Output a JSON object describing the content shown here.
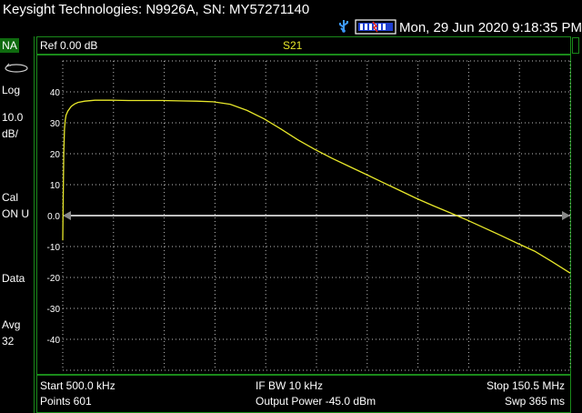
{
  "header": {
    "title": "Keysight Technologies: N9926A, SN: MY57271140",
    "datetime": "Mon, 29 Jun 2020 9:18:35 PM",
    "usb_icon": "usb-icon",
    "battery_icon": "battery-icon"
  },
  "left_panel": {
    "mode_badge": "NA",
    "format": "Log",
    "scale_value": "10.0",
    "scale_unit": "dB/",
    "cal_label": "Cal",
    "cal_value": "ON U",
    "data_label": "Data",
    "avg_label": "Avg",
    "avg_value": "32"
  },
  "trace_header": {
    "reference": "Ref 0.00 dB",
    "measurement": "S21"
  },
  "footer": {
    "start": "Start 500.0 kHz",
    "ifbw": "IF BW 10 kHz",
    "stop": "Stop 150.5 MHz",
    "points": "Points 601",
    "output_power": "Output Power -45.0 dBm",
    "sweep": "Swp 365 ms"
  },
  "colors": {
    "background": "#000000",
    "grid": "#ffffff",
    "frame": "#1a8a1a",
    "trace": "#e8e82a",
    "reference_line": "#ffffff",
    "badge": "#0f6b0f"
  },
  "chart_data": {
    "type": "line",
    "title": "S21",
    "xlabel": "",
    "ylabel": "",
    "x_unit": "MHz",
    "y_unit": "dB",
    "xlim": [
      0.5,
      150.5
    ],
    "ylim": [
      -50,
      50
    ],
    "reference_level": 0,
    "y_ticks": [
      40,
      30,
      20,
      10,
      0,
      -10,
      -20,
      -30,
      -40
    ],
    "y_tick_labels": [
      "40",
      "30",
      "20",
      "10",
      "0.0",
      "-10",
      "-20",
      "-30",
      "-40"
    ],
    "grid": true,
    "series": [
      {
        "x": [
          0.5,
          0.65,
          0.8,
          1.0,
          1.25,
          1.5,
          2.0,
          3.0,
          4.0,
          5.0,
          7.0,
          10.0,
          15.0,
          20.0,
          25.0,
          30.0,
          35.0,
          40.0,
          45.0,
          50.0,
          55.0,
          60.0,
          65.0,
          70.0,
          75.0,
          80.0,
          85.0,
          90.0,
          95.0,
          100.0,
          105.0,
          110.0,
          115.0,
          120.0,
          125.0,
          130.0,
          135.0,
          140.0,
          145.0,
          150.5
        ],
        "y": [
          -8.0,
          8.0,
          20.0,
          28.0,
          31.0,
          32.5,
          33.8,
          35.3,
          36.1,
          36.6,
          37.0,
          37.3,
          37.3,
          37.2,
          37.2,
          37.2,
          37.1,
          37.0,
          36.8,
          36.0,
          34.0,
          31.3,
          28.0,
          24.5,
          21.4,
          18.6,
          16.0,
          13.4,
          10.8,
          8.2,
          5.6,
          3.2,
          0.9,
          -1.4,
          -3.9,
          -6.4,
          -9.0,
          -11.5,
          -14.8,
          -18.6
        ]
      }
    ]
  }
}
